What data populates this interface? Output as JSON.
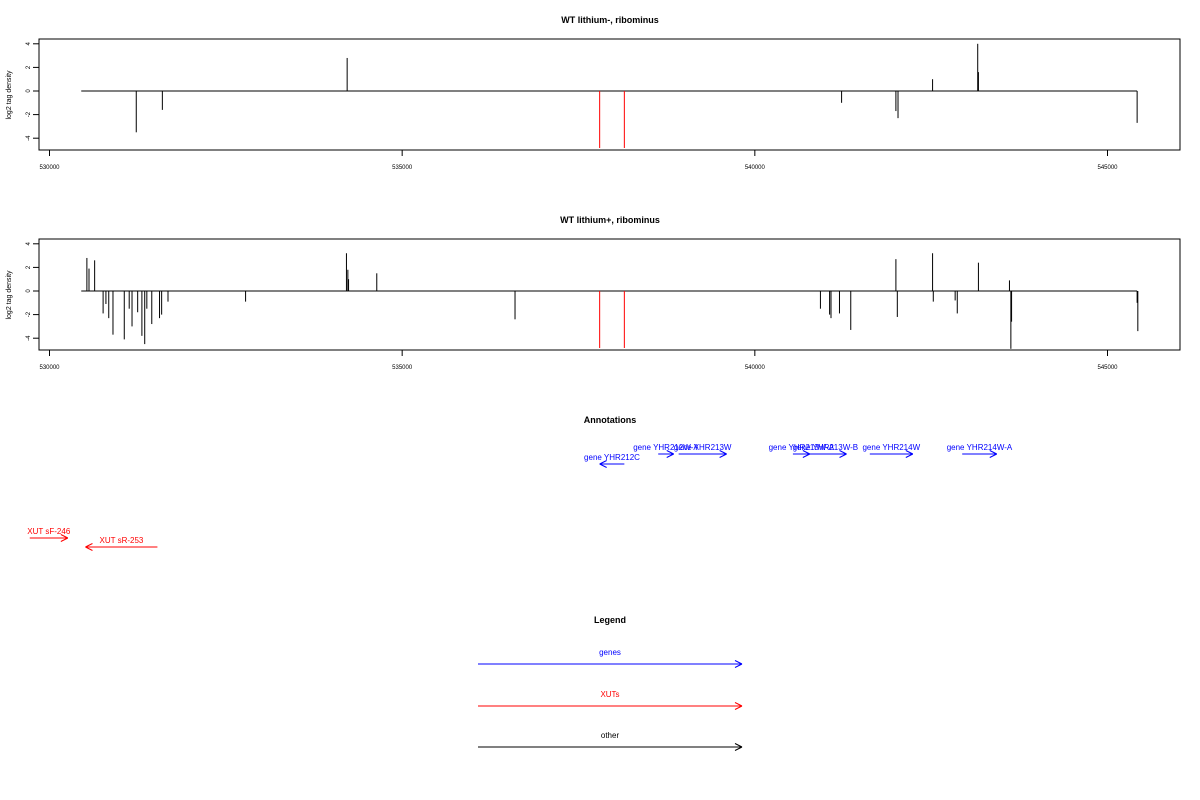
{
  "colors": {
    "gene": "#0000ff",
    "xut": "#ff0000",
    "other": "#000000",
    "marker": "#ff0000"
  },
  "chart_data": [
    {
      "type": "bar",
      "title": "WT lithium-, ribominus",
      "ylabel": "log2 tag density",
      "xlim": [
        529800,
        545300
      ],
      "ylim": [
        -5,
        4.5
      ],
      "xticks": [
        530000,
        535000,
        540000,
        545000
      ],
      "yticks": [
        4,
        2,
        0,
        -2,
        -4
      ],
      "baseline_range": [
        530450,
        545420
      ],
      "markers": [
        537800,
        538150
      ],
      "x": [
        531230,
        531600,
        534220,
        541230,
        542000,
        542030,
        542520,
        543160,
        543170,
        545420
      ],
      "values": [
        -3.5,
        -1.6,
        2.8,
        -1.0,
        -1.7,
        -2.3,
        1.0,
        4.0,
        1.6,
        -2.7
      ]
    },
    {
      "type": "bar",
      "title": "WT lithium+, ribominus",
      "ylabel": "log2 tag density",
      "xlim": [
        529800,
        545300
      ],
      "ylim": [
        -5,
        4.5
      ],
      "xticks": [
        530000,
        535000,
        540000,
        545000
      ],
      "yticks": [
        4,
        2,
        0,
        -2,
        -4
      ],
      "baseline_range": [
        530450,
        545420
      ],
      "markers": [
        537800,
        538150
      ],
      "x": [
        530530,
        530560,
        530640,
        530760,
        530800,
        530840,
        530900,
        531060,
        531130,
        531170,
        531250,
        531310,
        531350,
        531380,
        531450,
        531560,
        531590,
        531680,
        532780,
        534210,
        534230,
        534240,
        534640,
        536600,
        540930,
        541060,
        541080,
        541200,
        541360,
        542000,
        542020,
        542520,
        542530,
        542840,
        542870,
        543170,
        543610,
        543630,
        543640,
        545420,
        545430
      ],
      "values": [
        2.8,
        1.9,
        2.6,
        -1.9,
        -1.1,
        -2.3,
        -3.7,
        -4.1,
        -1.5,
        -3.0,
        -1.8,
        -3.8,
        -4.5,
        -1.5,
        -2.8,
        -2.3,
        -2.0,
        -0.9,
        -0.9,
        3.2,
        1.8,
        1.0,
        1.5,
        -2.4,
        -1.5,
        -2.0,
        -2.3,
        -1.9,
        -3.3,
        2.7,
        -2.2,
        3.2,
        -0.9,
        -0.8,
        -1.9,
        2.4,
        0.9,
        -4.9,
        -2.6,
        -1.0,
        -3.4
      ]
    }
  ],
  "annotations": {
    "title": "Annotations",
    "items": [
      {
        "label": "gene YHR212C",
        "type": "gene",
        "strand": "-",
        "start": 537800,
        "end": 538150,
        "row": 2
      },
      {
        "label": "gene YHR212W-A",
        "type": "gene",
        "strand": "+",
        "start": 538630,
        "end": 538850,
        "row": 1
      },
      {
        "label": "gene YHR213W",
        "type": "gene",
        "strand": "+",
        "start": 538920,
        "end": 539600,
        "row": 1
      },
      {
        "label": "gene YHR213W-A",
        "type": "gene",
        "strand": "+",
        "start": 540540,
        "end": 540780,
        "row": 1
      },
      {
        "label": "gene YHR213W-B",
        "type": "gene",
        "strand": "+",
        "start": 540700,
        "end": 541300,
        "row": 1
      },
      {
        "label": "gene YHR214W",
        "type": "gene",
        "strand": "+",
        "start": 541630,
        "end": 542240,
        "row": 1
      },
      {
        "label": "gene YHR214W-A",
        "type": "gene",
        "strand": "+",
        "start": 542940,
        "end": 543430,
        "row": 1
      },
      {
        "label": "XUT sF-246",
        "type": "xut",
        "strand": "+",
        "start": 529720,
        "end": 530260,
        "row": 3
      },
      {
        "label": "XUT sR-253",
        "type": "xut",
        "strand": "-",
        "start": 530510,
        "end": 531530,
        "row": 4
      }
    ]
  },
  "legend": {
    "title": "Legend",
    "items": [
      {
        "label": "genes",
        "type": "gene"
      },
      {
        "label": "XUTs",
        "type": "xut"
      },
      {
        "label": "other",
        "type": "other"
      }
    ]
  }
}
